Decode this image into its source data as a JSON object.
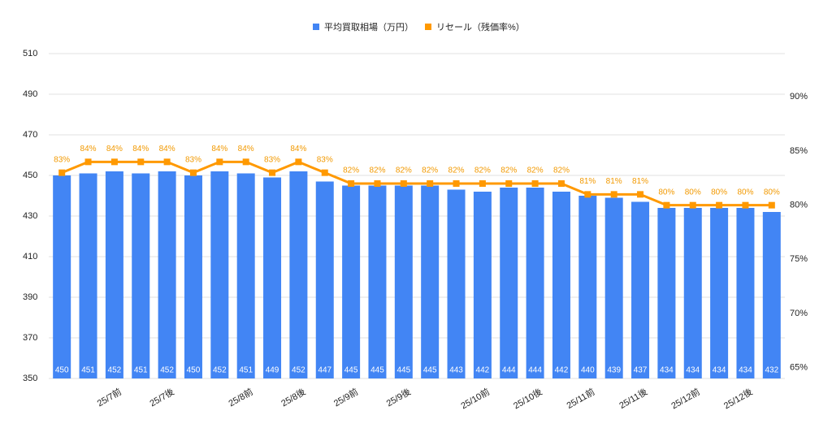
{
  "chart_data": {
    "type": "bar",
    "categories": [
      null,
      null,
      "25/7前",
      null,
      "25/7後",
      null,
      null,
      "25/8前",
      null,
      "25/8後",
      null,
      "25/9前",
      null,
      "25/9後",
      null,
      null,
      "25/10前",
      null,
      "25/10後",
      null,
      "25/11前",
      null,
      "25/11後",
      null,
      "25/12前",
      null,
      "25/12後",
      null
    ],
    "series": [
      {
        "name": "平均買取相場（万円）",
        "color": "#4285f4",
        "type": "bar",
        "values": [
          450,
          451,
          452,
          451,
          452,
          450,
          452,
          451,
          449,
          452,
          447,
          445,
          445,
          445,
          445,
          443,
          442,
          444,
          444,
          442,
          440,
          439,
          437,
          434,
          434,
          434,
          434,
          432
        ]
      },
      {
        "name": "リセール（残価率%）",
        "color": "#ff9900",
        "type": "line",
        "axis": "y2",
        "values": [
          83,
          84,
          84,
          84,
          84,
          83,
          84,
          84,
          83,
          84,
          83,
          82,
          82,
          82,
          82,
          82,
          82,
          82,
          82,
          82,
          81,
          81,
          81,
          80,
          80,
          80,
          80,
          80
        ],
        "value_labels": [
          "83%",
          "84%",
          "84%",
          "84%",
          "84%",
          "83%",
          "84%",
          "84%",
          "83%",
          "84%",
          "83%",
          "82%",
          "82%",
          "82%",
          "82%",
          "82%",
          "82%",
          "82%",
          "82%",
          "82%",
          "81%",
          "81%",
          "81%",
          "80%",
          "80%",
          "80%",
          "80%",
          "80%"
        ]
      }
    ],
    "ylim": [
      350,
      510
    ],
    "yticks": [
      350,
      370,
      390,
      410,
      430,
      450,
      470,
      490,
      510
    ],
    "y2lim": [
      64,
      94
    ],
    "y2ticks": [
      {
        "value": 65,
        "label": "65%"
      },
      {
        "value": 70,
        "label": "70%"
      },
      {
        "value": 75,
        "label": "75%"
      },
      {
        "value": 80,
        "label": "80%"
      },
      {
        "value": 85,
        "label": "85%"
      },
      {
        "value": 90,
        "label": "90%"
      }
    ],
    "grid": true
  }
}
